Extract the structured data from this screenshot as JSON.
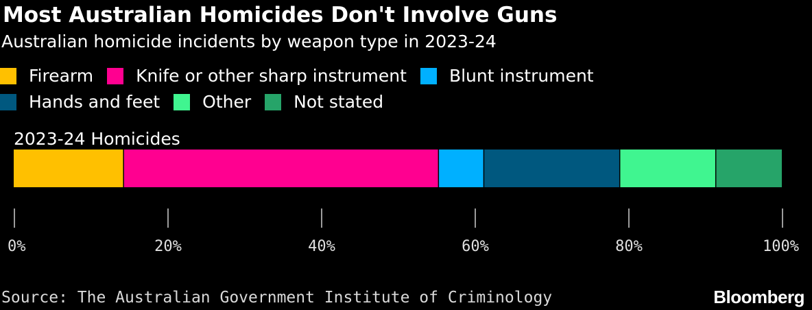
{
  "header": {
    "title": "Most Australian Homicides Don't Involve Guns",
    "subtitle": "Australian homicide incidents by weapon type in 2023-24"
  },
  "legend": [
    {
      "label": "Firearm",
      "color": "#FFC000"
    },
    {
      "label": "Knife or other sharp instrument",
      "color": "#FF0090"
    },
    {
      "label": "Blunt instrument",
      "color": "#00B0FF"
    },
    {
      "label": "Hands and feet",
      "color": "#00587F"
    },
    {
      "label": "Other",
      "color": "#40F590"
    },
    {
      "label": "Not stated",
      "color": "#26A469"
    }
  ],
  "chart_data": {
    "type": "bar",
    "orientation": "horizontal",
    "stacked": true,
    "categories": [
      "2023-24 Homicides"
    ],
    "series": [
      {
        "name": "Firearm",
        "values": [
          14.3
        ],
        "color": "#FFC000"
      },
      {
        "name": "Knife or other sharp instrument",
        "values": [
          41.0
        ],
        "color": "#FF0090"
      },
      {
        "name": "Blunt instrument",
        "values": [
          5.9
        ],
        "color": "#00B0FF"
      },
      {
        "name": "Hands and feet",
        "values": [
          17.7
        ],
        "color": "#00587F"
      },
      {
        "name": "Other",
        "values": [
          12.5
        ],
        "color": "#40F590"
      },
      {
        "name": "Not stated",
        "values": [
          8.6
        ],
        "color": "#26A469"
      }
    ],
    "xlim": [
      0,
      100
    ],
    "x_ticks": [
      0,
      20,
      40,
      60,
      80,
      100
    ],
    "x_tick_labels": [
      "0%",
      "20%",
      "40%",
      "60%",
      "80%",
      "100%"
    ],
    "grid": false,
    "legend_position": "top-left"
  },
  "footer": {
    "source": "Source: The Australian Government Institute of Criminology",
    "brand": "Bloomberg"
  }
}
